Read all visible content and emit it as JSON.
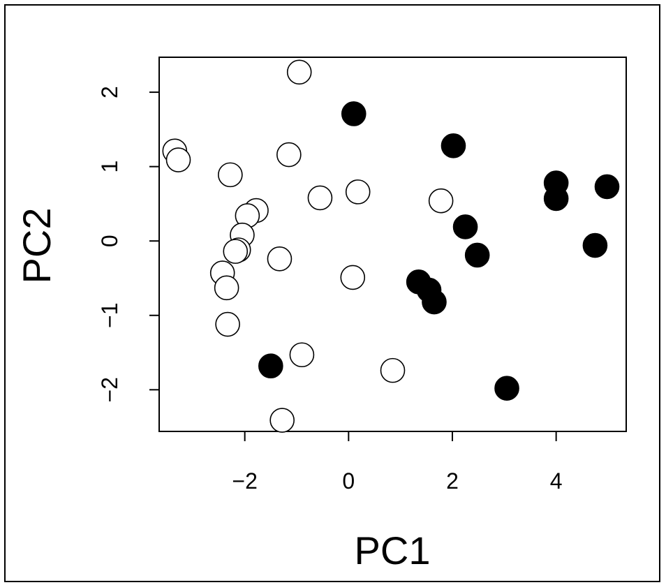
{
  "chart_data": {
    "type": "scatter",
    "xlabel": "PC1",
    "ylabel": "PC2",
    "xlim": [
      -3.65,
      5.35
    ],
    "ylim": [
      -2.56,
      2.47
    ],
    "xticks": [
      -2,
      0,
      2,
      4
    ],
    "xtick_labels": [
      "−2",
      "0",
      "2",
      "4"
    ],
    "yticks": [
      -2,
      -1,
      0,
      1,
      2
    ],
    "ytick_labels": [
      "−2",
      "−1",
      "0",
      "1",
      "2"
    ],
    "grid": false,
    "series": [
      {
        "marker": "open-circle",
        "color": "#000000",
        "fill": "#ffffff",
        "points": [
          [
            -0.95,
            2.27
          ],
          [
            -3.35,
            1.21
          ],
          [
            -3.28,
            1.09
          ],
          [
            -1.15,
            1.16
          ],
          [
            -2.28,
            0.89
          ],
          [
            -0.55,
            0.58
          ],
          [
            0.18,
            0.66
          ],
          [
            1.78,
            0.54
          ],
          [
            -1.78,
            0.41
          ],
          [
            -1.95,
            0.34
          ],
          [
            -2.05,
            0.08
          ],
          [
            -2.12,
            -0.12
          ],
          [
            -2.18,
            -0.14
          ],
          [
            -1.33,
            -0.24
          ],
          [
            -2.43,
            -0.43
          ],
          [
            -2.35,
            -0.63
          ],
          [
            0.08,
            -0.49
          ],
          [
            -2.33,
            -1.12
          ],
          [
            -0.9,
            -1.53
          ],
          [
            0.85,
            -1.74
          ],
          [
            -1.28,
            -2.41
          ]
        ]
      },
      {
        "marker": "filled-circle",
        "color": "#000000",
        "fill": "#000000",
        "points": [
          [
            0.1,
            1.71
          ],
          [
            2.02,
            1.28
          ],
          [
            4.0,
            0.78
          ],
          [
            4.0,
            0.57
          ],
          [
            4.98,
            0.73
          ],
          [
            2.25,
            0.19
          ],
          [
            2.48,
            -0.19
          ],
          [
            4.75,
            -0.06
          ],
          [
            1.35,
            -0.55
          ],
          [
            1.55,
            -0.66
          ],
          [
            1.65,
            -0.82
          ],
          [
            -1.5,
            -1.68
          ],
          [
            3.05,
            -1.98
          ]
        ]
      }
    ]
  }
}
